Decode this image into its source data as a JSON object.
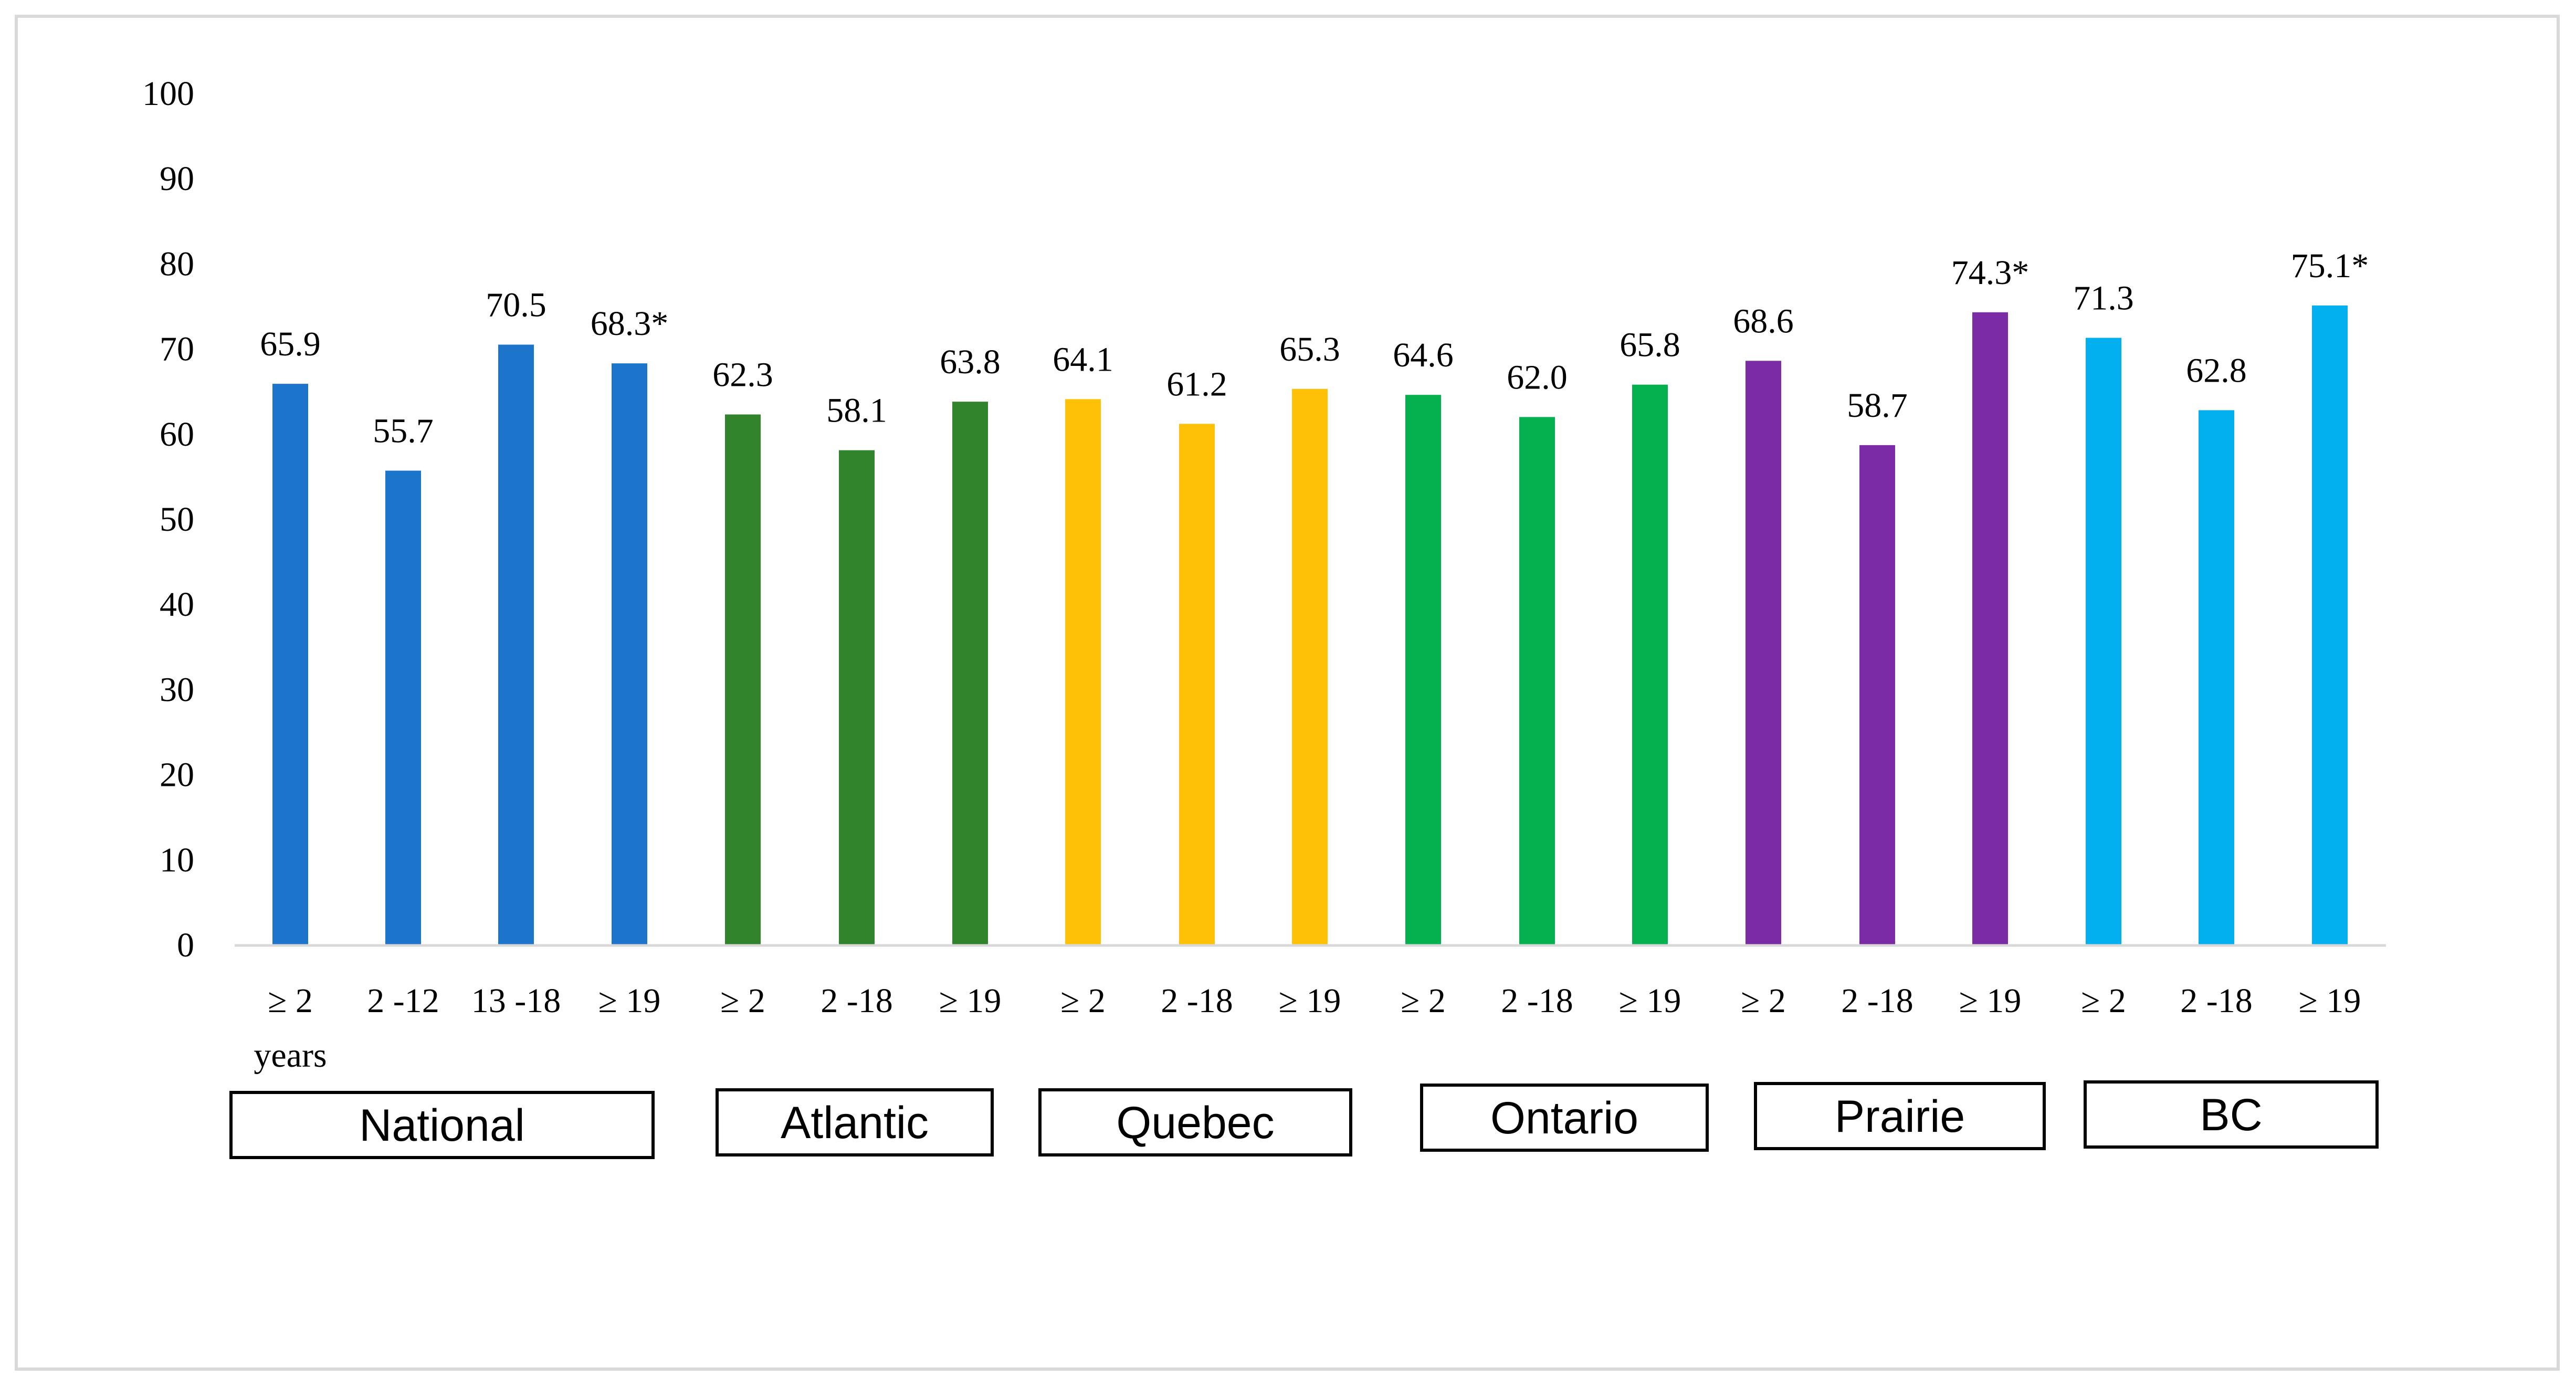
{
  "chart_data": {
    "type": "bar",
    "title": "",
    "xlabel": "",
    "ylabel": "",
    "ylim": [
      0,
      100
    ],
    "yticks": [
      0,
      10,
      20,
      30,
      40,
      50,
      60,
      70,
      80,
      90,
      100
    ],
    "x_unit_note": "years",
    "groups": [
      {
        "name": "National",
        "color": "#1C75CA",
        "categories": [
          "≥ 2",
          "2 -12",
          "13 -18",
          "≥ 19"
        ],
        "values": [
          65.9,
          55.7,
          70.5,
          68.3
        ],
        "labels": [
          "65.9",
          "55.7",
          "70.5",
          "68.3*"
        ]
      },
      {
        "name": "Atlantic",
        "color": "#31832C",
        "categories": [
          "≥ 2",
          "2 -18",
          "≥ 19"
        ],
        "values": [
          62.3,
          58.1,
          63.8
        ],
        "labels": [
          "62.3",
          "58.1",
          "63.8"
        ]
      },
      {
        "name": "Quebec",
        "color": "#FFC105",
        "categories": [
          "≥ 2",
          "2 -18",
          "≥ 19"
        ],
        "values": [
          64.1,
          61.2,
          65.3
        ],
        "labels": [
          "64.1",
          "61.2",
          "65.3"
        ]
      },
      {
        "name": "Ontario",
        "color": "#05B14E",
        "categories": [
          "≥ 2",
          "2 -18",
          "≥ 19"
        ],
        "values": [
          64.6,
          62.0,
          65.8
        ],
        "labels": [
          "64.6",
          "62.0",
          "65.8"
        ]
      },
      {
        "name": "Prairie",
        "color": "#7B2BA5",
        "categories": [
          "≥ 2",
          "2 -18",
          "≥ 19"
        ],
        "values": [
          68.6,
          58.7,
          74.3
        ],
        "labels": [
          "68.6",
          "58.7",
          "74.3*"
        ]
      },
      {
        "name": "BC",
        "color": "#03B0EF",
        "categories": [
          "≥ 2",
          "2 -18",
          "≥ 19"
        ],
        "values": [
          71.3,
          62.8,
          75.1
        ],
        "labels": [
          "71.3",
          "62.8",
          "75.1*"
        ]
      }
    ]
  }
}
